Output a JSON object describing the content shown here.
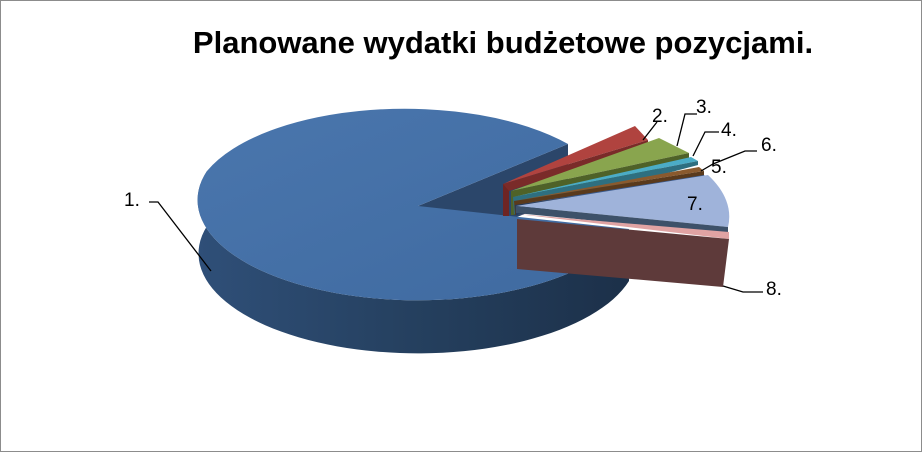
{
  "chart_data": {
    "type": "pie",
    "style": "3d-exploded",
    "title": "Planowane wydatki budżetowe pozycjami.",
    "labels": [
      "1.",
      "2.",
      "3.",
      "4.",
      "5.",
      "6.",
      "7.",
      "8."
    ],
    "values": [
      72,
      2,
      4,
      0.6,
      0.7,
      0.9,
      11,
      8.8
    ],
    "colors": [
      "#4572A7",
      "#AA4643",
      "#89A54E",
      "#4BACC6",
      "#8A5A2E",
      "#3A5A8C",
      "#A0B5DB",
      "#5E3A3A"
    ],
    "legend": "none"
  }
}
